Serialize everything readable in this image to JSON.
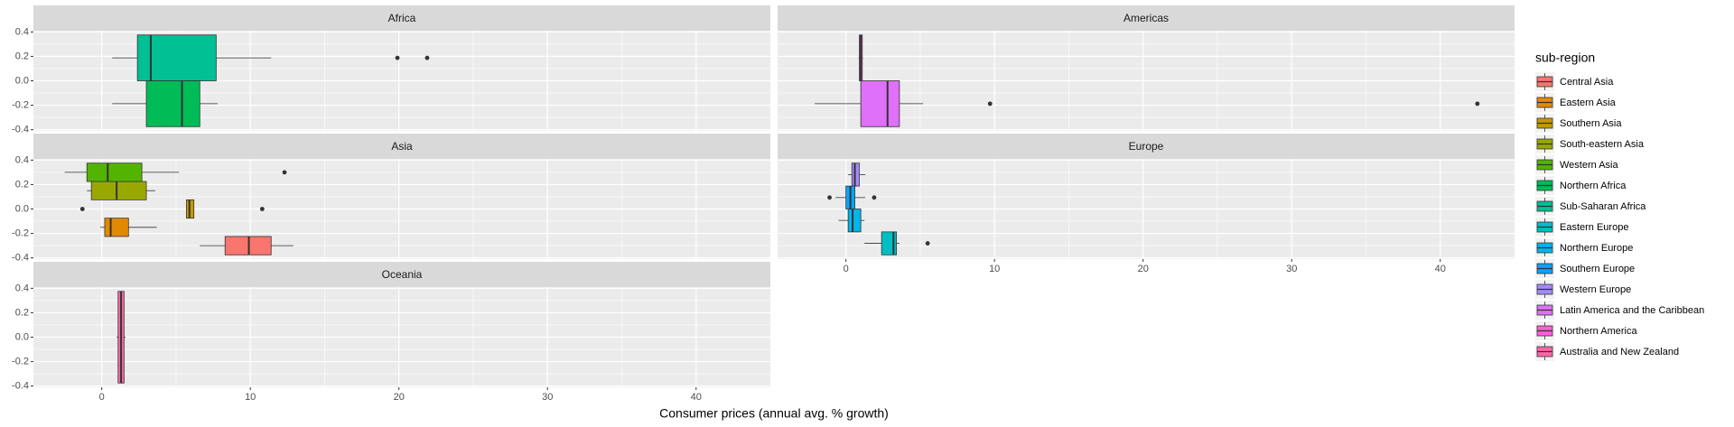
{
  "chart_data": {
    "type": "boxplot",
    "x_label": "Consumer prices (annual avg. % growth)",
    "legend_title": "sub-region",
    "facets": [
      "Africa",
      "Americas",
      "Asia",
      "Europe",
      "Oceania"
    ],
    "xlim": [
      -4.6,
      45
    ],
    "xticks": [
      0,
      10,
      20,
      30,
      40
    ],
    "x_minor_ticks": [
      5,
      15,
      25,
      35
    ],
    "ylim": [
      -0.41,
      0.41
    ],
    "yticks": [
      0.4,
      0.2,
      {
        "value": 0,
        "label": "0.0"
      },
      -0.2,
      -0.4
    ],
    "y_minor_ticks": [
      0.3,
      0.1,
      -0.1,
      -0.3
    ],
    "grid": true,
    "series": [
      {
        "name": "Central Asia",
        "color": "#F8766D",
        "facet": "Asia",
        "min": 6.6,
        "q1": 8.3,
        "median": 9.9,
        "q3": 11.4,
        "max": 12.9,
        "outliers": []
      },
      {
        "name": "Eastern Asia",
        "color": "#E38900",
        "facet": "Asia",
        "min": -0.1,
        "q1": 0.2,
        "median": 0.6,
        "q3": 1.8,
        "max": 3.7,
        "outliers": []
      },
      {
        "name": "Southern Asia",
        "color": "#C49A00",
        "facet": "Asia",
        "min": 5.7,
        "q1": 5.7,
        "median": 5.9,
        "q3": 6.2,
        "max": 6.2,
        "outliers": [
          -1.3,
          10.8
        ]
      },
      {
        "name": "South-eastern Asia",
        "color": "#99A800",
        "facet": "Asia",
        "min": -1.0,
        "q1": -0.7,
        "median": 1.0,
        "q3": 3.0,
        "max": 3.6,
        "outliers": []
      },
      {
        "name": "Western Asia",
        "color": "#53B400",
        "facet": "Asia",
        "min": -2.5,
        "q1": -1.0,
        "median": 0.4,
        "q3": 2.7,
        "max": 5.2,
        "outliers": [
          12.3
        ]
      },
      {
        "name": "Northern Africa",
        "color": "#00BC56",
        "facet": "Africa",
        "min": 0.7,
        "q1": 3.0,
        "median": 5.4,
        "q3": 6.6,
        "max": 7.8,
        "outliers": []
      },
      {
        "name": "Sub-Saharan Africa",
        "color": "#00C094",
        "facet": "Africa",
        "min": 0.7,
        "q1": 2.4,
        "median": 3.3,
        "q3": 7.7,
        "max": 11.4,
        "outliers": [
          19.9,
          21.9
        ]
      },
      {
        "name": "Eastern Europe",
        "color": "#00BFC4",
        "facet": "Europe",
        "min": 1.25,
        "q1": 2.4,
        "median": 3.2,
        "q3": 3.4,
        "max": 3.6,
        "outliers": [
          5.5
        ]
      },
      {
        "name": "Northern Europe",
        "color": "#00B6EB",
        "facet": "Europe",
        "min": -0.5,
        "q1": 0.15,
        "median": 0.45,
        "q3": 1.0,
        "max": 1.25,
        "outliers": []
      },
      {
        "name": "Southern Europe",
        "color": "#06A4FF",
        "facet": "Europe",
        "min": -0.7,
        "q1": 0.0,
        "median": 0.3,
        "q3": 0.6,
        "max": 1.3,
        "outliers": [
          -1.1,
          1.9
        ]
      },
      {
        "name": "Western Europe",
        "color": "#A58AFF",
        "facet": "Europe",
        "min": 0.15,
        "q1": 0.4,
        "median": 0.6,
        "q3": 0.9,
        "max": 1.3,
        "outliers": []
      },
      {
        "name": "Latin America and the Caribbean",
        "color": "#DF70F8",
        "facet": "Americas",
        "min": -2.1,
        "q1": 1.0,
        "median": 2.8,
        "q3": 3.6,
        "max": 5.2,
        "outliers": [
          9.7,
          42.5
        ]
      },
      {
        "name": "Northern America",
        "color": "#FB61D7",
        "facet": "Americas",
        "min": 0.85,
        "q1": 0.9,
        "median": 1.0,
        "q3": 1.1,
        "max": 1.15,
        "outliers": []
      },
      {
        "name": "Australia and New Zealand",
        "color": "#FF66A8",
        "facet": "Oceania",
        "min": 1.0,
        "q1": 1.1,
        "median": 1.3,
        "q3": 1.5,
        "max": 1.6,
        "outliers": []
      }
    ]
  }
}
